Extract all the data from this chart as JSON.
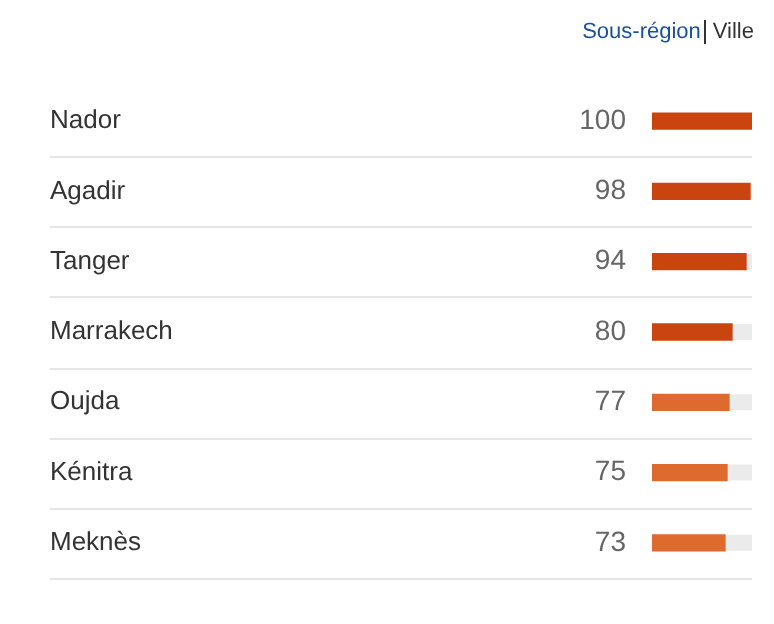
{
  "chart_data": {
    "type": "bar",
    "orientation": "horizontal",
    "categories": [
      "Nador",
      "Agadir",
      "Tanger",
      "Marrakech",
      "Oujda",
      "Kénitra",
      "Meknès"
    ],
    "values": [
      100,
      98,
      94,
      80,
      77,
      75,
      73
    ],
    "colors": [
      "#c9440f",
      "#c9440f",
      "#c9440f",
      "#c9440f",
      "#df6a2e",
      "#df6a2e",
      "#df6a2e"
    ],
    "xlim": [
      0,
      100
    ],
    "tick_labels": "y",
    "legend": false,
    "data_labels": true,
    "annotations": [
      "Sous-région",
      "Ville"
    ]
  }
}
